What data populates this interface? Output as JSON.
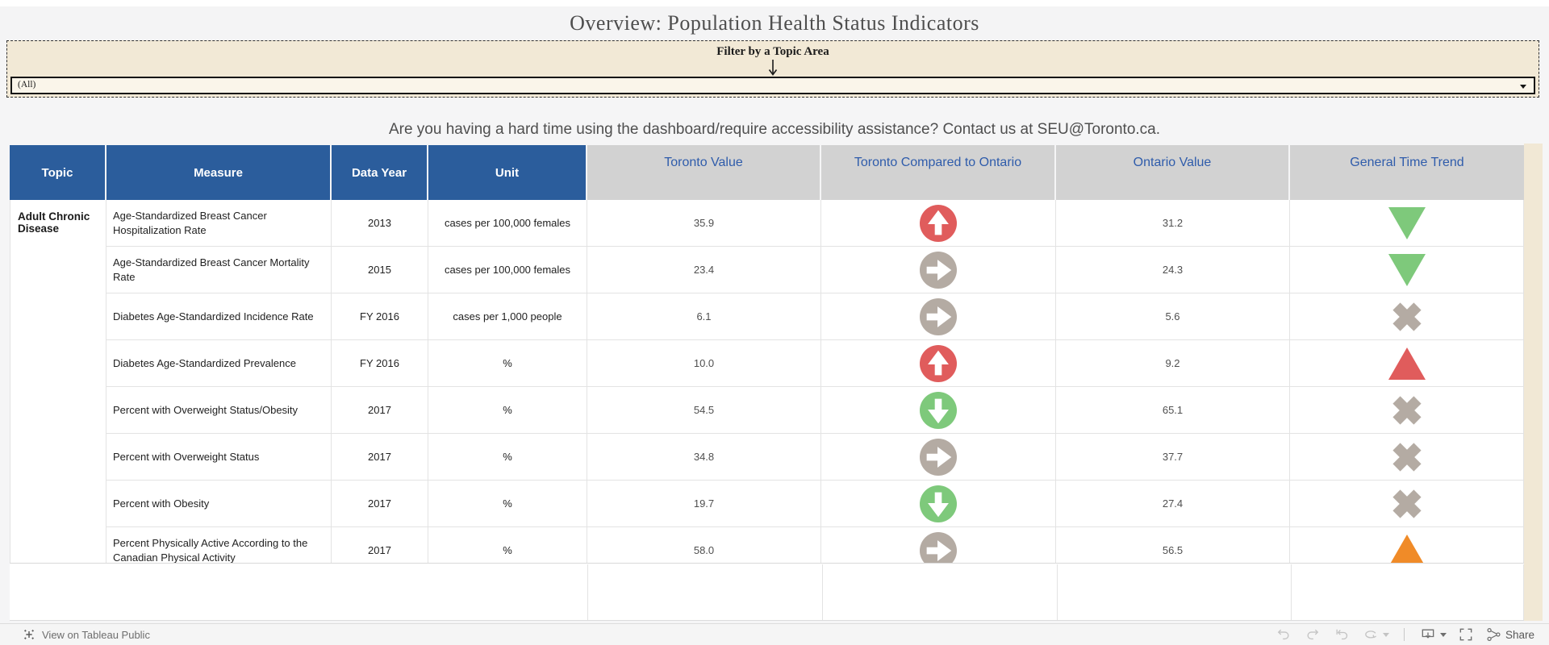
{
  "page": {
    "title": "Overview: Population Health Status Indicators"
  },
  "filter": {
    "label": "Filter by a Topic Area",
    "value": "(All)"
  },
  "notice": "Are you having a hard time using the dashboard/require accessibility assistance? Contact us at SEU@Toronto.ca.",
  "table": {
    "headers": {
      "topic": "Topic",
      "measure": "Measure",
      "data_year": "Data Year",
      "unit": "Unit",
      "toronto_value": "Toronto Value",
      "comparison": "Toronto Compared to Ontario",
      "ontario_value": "Ontario Value",
      "trend": "General Time Trend"
    },
    "topic_group": "Adult Chronic Disease",
    "rows": [
      {
        "measure": "Age-Standardized Breast Cancer Hospitalization Rate",
        "data_year": "2013",
        "unit": "cases per 100,000 females",
        "toronto_value": "35.9",
        "comparison_icon": "circle-arrow-up-red",
        "ontario_value": "31.2",
        "trend_icon": "triangle-down-green"
      },
      {
        "measure": "Age-Standardized Breast Cancer Mortality Rate",
        "data_year": "2015",
        "unit": "cases per 100,000 females",
        "toronto_value": "23.4",
        "comparison_icon": "circle-arrow-right-gray",
        "ontario_value": "24.3",
        "trend_icon": "triangle-down-green"
      },
      {
        "measure": "Diabetes Age-Standardized Incidence Rate",
        "data_year": "FY 2016",
        "unit": "cases per 1,000 people",
        "toronto_value": "6.1",
        "comparison_icon": "circle-arrow-right-gray",
        "ontario_value": "5.6",
        "trend_icon": "cross-gray"
      },
      {
        "measure": "Diabetes Age-Standardized Prevalence",
        "data_year": "FY 2016",
        "unit": "%",
        "toronto_value": "10.0",
        "comparison_icon": "circle-arrow-up-red",
        "ontario_value": "9.2",
        "trend_icon": "triangle-up-red"
      },
      {
        "measure": "Percent with Overweight Status/Obesity",
        "data_year": "2017",
        "unit": "%",
        "toronto_value": "54.5",
        "comparison_icon": "circle-arrow-down-green",
        "ontario_value": "65.1",
        "trend_icon": "cross-gray"
      },
      {
        "measure": "Percent with Overweight Status",
        "data_year": "2017",
        "unit": "%",
        "toronto_value": "34.8",
        "comparison_icon": "circle-arrow-right-gray",
        "ontario_value": "37.7",
        "trend_icon": "cross-gray"
      },
      {
        "measure": "Percent with Obesity",
        "data_year": "2017",
        "unit": "%",
        "toronto_value": "19.7",
        "comparison_icon": "circle-arrow-down-green",
        "ontario_value": "27.4",
        "trend_icon": "cross-gray"
      },
      {
        "measure": "Percent Physically Active According to the Canadian Physical Activity",
        "data_year": "2017",
        "unit": "%",
        "toronto_value": "58.0",
        "comparison_icon": "circle-arrow-right-gray",
        "ontario_value": "56.5",
        "trend_icon": "triangle-up-orange"
      }
    ]
  },
  "toolbar": {
    "view_label": "View on Tableau Public",
    "share_label": "Share"
  },
  "colors": {
    "red": "#e05c5c",
    "green": "#7ec97b",
    "gray": "#b4aba3",
    "orange": "#f08b28",
    "header_blue_bg": "#2b5d9c",
    "header_text_blue": "#2f5cab"
  }
}
